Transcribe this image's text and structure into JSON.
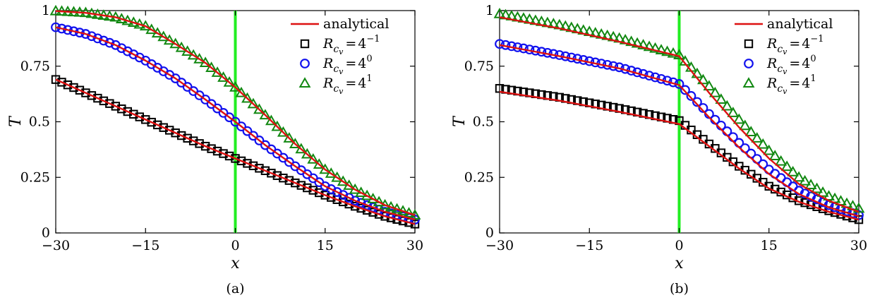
{
  "chart_data": [
    {
      "type": "line",
      "caption": "(a)",
      "xlabel": "x",
      "ylabel": "T",
      "xlim": [
        -30,
        30
      ],
      "ylim": [
        0,
        1
      ],
      "xticks": [
        -30,
        -15,
        0,
        15,
        30
      ],
      "xtick_labels": [
        "−30",
        "−15",
        "0",
        "15",
        "30"
      ],
      "yticks": [
        0,
        0.25,
        0.5,
        0.75,
        1
      ],
      "ytick_labels": [
        "0",
        "0.25",
        "0.5",
        "0.75",
        "1"
      ],
      "grid": false,
      "legend_position": "top-right",
      "vertical_line": {
        "x": 0,
        "color": "#22ee22"
      },
      "series": [
        {
          "name": "analytical",
          "kind": "line",
          "color": "#dd1111",
          "x": [
            -30,
            -25,
            -20,
            -15,
            -10,
            -5,
            0,
            5,
            10,
            15,
            20,
            25,
            30
          ],
          "y": [
            0.69,
            0.63,
            0.57,
            0.51,
            0.45,
            0.39,
            0.335,
            0.28,
            0.225,
            0.17,
            0.12,
            0.075,
            0.04
          ]
        },
        {
          "name": "analytical",
          "kind": "line",
          "color": "#dd1111",
          "x": [
            -30,
            -25,
            -20,
            -15,
            -10,
            -5,
            0,
            5,
            10,
            15,
            20,
            25,
            30
          ],
          "y": [
            0.925,
            0.895,
            0.845,
            0.775,
            0.695,
            0.6,
            0.5,
            0.395,
            0.3,
            0.21,
            0.145,
            0.095,
            0.06
          ]
        },
        {
          "name": "analytical",
          "kind": "line",
          "color": "#dd1111",
          "x": [
            -30,
            -25,
            -20,
            -15,
            -10,
            -5,
            0,
            5,
            10,
            15,
            20,
            25,
            30
          ],
          "y": [
            0.998,
            0.99,
            0.97,
            0.93,
            0.85,
            0.765,
            0.655,
            0.53,
            0.4,
            0.285,
            0.195,
            0.125,
            0.08
          ]
        },
        {
          "name": "R_{c_v} = 4^{-1}",
          "kind": "square",
          "color": "#000000",
          "x": [
            -30,
            -25,
            -20,
            -15,
            -10,
            -5,
            0,
            5,
            10,
            15,
            20,
            25,
            30
          ],
          "y": [
            0.69,
            0.63,
            0.57,
            0.51,
            0.45,
            0.39,
            0.335,
            0.28,
            0.225,
            0.17,
            0.12,
            0.075,
            0.04
          ]
        },
        {
          "name": "R_{c_v} = 4^{0}",
          "kind": "circle",
          "color": "#1111ee",
          "x": [
            -30,
            -25,
            -20,
            -15,
            -10,
            -5,
            0,
            5,
            10,
            15,
            20,
            25,
            30
          ],
          "y": [
            0.925,
            0.895,
            0.845,
            0.775,
            0.695,
            0.6,
            0.5,
            0.395,
            0.3,
            0.21,
            0.145,
            0.095,
            0.06
          ]
        },
        {
          "name": "R_{c_v} = 4^{1}",
          "kind": "triangle",
          "color": "#118811",
          "x": [
            -30,
            -25,
            -20,
            -15,
            -10,
            -5,
            0,
            5,
            10,
            15,
            20,
            25,
            30
          ],
          "y": [
            0.998,
            0.99,
            0.97,
            0.93,
            0.85,
            0.765,
            0.655,
            0.53,
            0.4,
            0.285,
            0.195,
            0.125,
            0.08
          ]
        }
      ]
    },
    {
      "type": "line",
      "caption": "(b)",
      "xlabel": "x",
      "ylabel": "T",
      "xlim": [
        -30,
        30
      ],
      "ylim": [
        0,
        1
      ],
      "xticks": [
        -30,
        -15,
        0,
        15,
        30
      ],
      "xtick_labels": [
        "−30",
        "−15",
        "0",
        "15",
        "30"
      ],
      "yticks": [
        0,
        0.25,
        0.5,
        0.75,
        1
      ],
      "ytick_labels": [
        "0",
        "0.25",
        "0.5",
        "0.75",
        "1"
      ],
      "grid": false,
      "legend_position": "top-right",
      "vertical_line": {
        "x": 0,
        "color": "#22ee22"
      },
      "series": [
        {
          "name": "analytical",
          "kind": "line",
          "color": "#dd1111",
          "x": [
            -30,
            -20,
            -10,
            0,
            5,
            10,
            15,
            20,
            25,
            30
          ],
          "y": [
            0.635,
            0.595,
            0.545,
            0.49,
            0.39,
            0.29,
            0.2,
            0.14,
            0.095,
            0.06
          ]
        },
        {
          "name": "analytical",
          "kind": "line",
          "color": "#dd1111",
          "x": [
            -30,
            -20,
            -10,
            0,
            5,
            10,
            15,
            20,
            25,
            30
          ],
          "y": [
            0.845,
            0.795,
            0.74,
            0.665,
            0.52,
            0.385,
            0.265,
            0.175,
            0.115,
            0.075
          ]
        },
        {
          "name": "analytical",
          "kind": "line",
          "color": "#dd1111",
          "x": [
            -30,
            -20,
            -10,
            0,
            5,
            10,
            15,
            20,
            25,
            30
          ],
          "y": [
            0.97,
            0.92,
            0.86,
            0.795,
            0.63,
            0.475,
            0.335,
            0.22,
            0.145,
            0.095
          ]
        },
        {
          "name": "R_{c_v} = 4^{-1}",
          "kind": "square",
          "color": "#000000",
          "x": [
            -30,
            -20,
            -10,
            0,
            5,
            10,
            15,
            20,
            25,
            30
          ],
          "y": [
            0.65,
            0.61,
            0.56,
            0.505,
            0.4,
            0.3,
            0.21,
            0.145,
            0.1,
            0.06
          ]
        },
        {
          "name": "R_{c_v} = 4^{0}",
          "kind": "circle",
          "color": "#1111ee",
          "x": [
            -30,
            -20,
            -10,
            0,
            5,
            10,
            15,
            20,
            25,
            30
          ],
          "y": [
            0.85,
            0.8,
            0.745,
            0.67,
            0.535,
            0.405,
            0.285,
            0.19,
            0.125,
            0.08
          ]
        },
        {
          "name": "R_{c_v} = 4^{1}",
          "kind": "triangle",
          "color": "#118811",
          "x": [
            -30,
            -20,
            -10,
            0,
            5,
            10,
            15,
            20,
            25,
            30
          ],
          "y": [
            0.985,
            0.935,
            0.875,
            0.8,
            0.66,
            0.51,
            0.37,
            0.25,
            0.165,
            0.11
          ]
        }
      ]
    }
  ],
  "legend": {
    "analytical_label": "analytical",
    "symbol": "R",
    "subscript": "c",
    "subsubscript": "v",
    "equals": "=",
    "base": "4",
    "exponents": [
      "−1",
      "0",
      "1"
    ]
  }
}
